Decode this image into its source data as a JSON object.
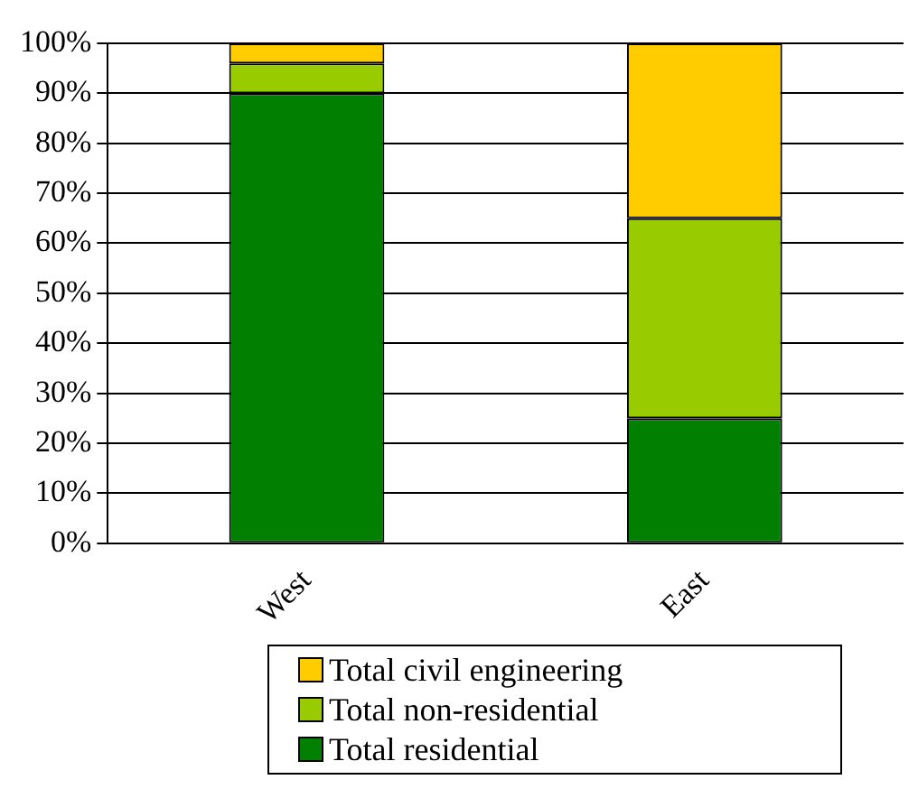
{
  "chart_data": {
    "type": "bar",
    "stacked": true,
    "categories": [
      "West",
      "East"
    ],
    "series": [
      {
        "name": "Total residential",
        "color": "#007f00",
        "values": [
          90,
          25
        ]
      },
      {
        "name": "Total non-residential",
        "color": "#99cc00",
        "values": [
          6,
          40
        ]
      },
      {
        "name": "Total civil engineering",
        "color": "#ffcc00",
        "values": [
          4,
          35
        ]
      }
    ],
    "ylim": [
      0,
      100
    ],
    "yticks": [
      {
        "value": 0,
        "label": "0%"
      },
      {
        "value": 10,
        "label": "10%"
      },
      {
        "value": 20,
        "label": "20%"
      },
      {
        "value": 30,
        "label": "30%"
      },
      {
        "value": 40,
        "label": "40%"
      },
      {
        "value": 50,
        "label": "50%"
      },
      {
        "value": 60,
        "label": "60%"
      },
      {
        "value": 70,
        "label": "70%"
      },
      {
        "value": 80,
        "label": "80%"
      },
      {
        "value": 90,
        "label": "90%"
      },
      {
        "value": 100,
        "label": "100%"
      }
    ],
    "grid": "y",
    "legend": "bottom"
  }
}
